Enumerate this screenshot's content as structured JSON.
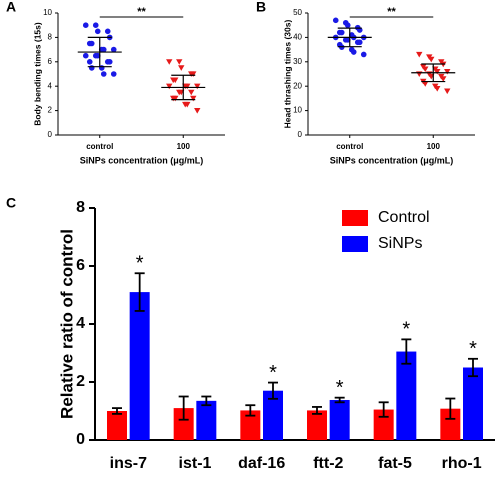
{
  "chart_data": [
    {
      "type": "dot",
      "panel": "A",
      "ylabel": "Body bending times (15s)",
      "xlabel": "SiNPs  concentration (μg/mL)",
      "categories": [
        "control",
        "100"
      ],
      "annotation": "**",
      "ylim": [
        0,
        10
      ],
      "yticks": [
        0,
        2,
        4,
        6,
        8,
        10
      ],
      "groups": [
        {
          "color": "#1a1ae6",
          "marker": "circle",
          "mean": 6.8,
          "sd": 1.2,
          "values": [
            9.0,
            9.0,
            8.5,
            8.5,
            8.0,
            7.5,
            7.5,
            7.0,
            7.0,
            7.0,
            6.5,
            6.5,
            6.5,
            6.0,
            6.0,
            6.0,
            5.5,
            5.5,
            5.0,
            5.0
          ]
        },
        {
          "color": "#e61a1a",
          "marker": "triangle",
          "mean": 3.9,
          "sd": 1.0,
          "values": [
            6.0,
            6.0,
            5.5,
            5.0,
            5.0,
            4.5,
            4.5,
            4.0,
            4.0,
            4.0,
            4.0,
            3.5,
            3.5,
            3.5,
            3.0,
            3.0,
            3.0,
            2.5,
            2.5,
            2.0
          ]
        }
      ]
    },
    {
      "type": "dot",
      "panel": "B",
      "ylabel": "Head thrashing times (30s)",
      "xlabel": "SiNPs  concentration (μg/mL)",
      "categories": [
        "control",
        "100"
      ],
      "annotation": "**",
      "ylim": [
        0,
        50
      ],
      "yticks": [
        0,
        10,
        20,
        30,
        40,
        50
      ],
      "groups": [
        {
          "color": "#1a1ae6",
          "marker": "circle",
          "mean": 40,
          "sd": 3.8,
          "values": [
            47,
            46,
            45,
            44,
            43,
            42,
            42,
            41,
            40,
            40,
            40,
            39,
            39,
            38,
            38,
            37,
            36,
            35,
            34,
            33
          ]
        },
        {
          "color": "#e61a1a",
          "marker": "triangle",
          "mean": 25.5,
          "sd": 3.6,
          "values": [
            33,
            32,
            31,
            30,
            29,
            28,
            27,
            27,
            26,
            26,
            25,
            25,
            24,
            24,
            23,
            22,
            21,
            20,
            19,
            18
          ]
        }
      ]
    },
    {
      "type": "bar",
      "panel": "C",
      "ylabel": "Relative ratio of control",
      "categories": [
        "ins-7",
        "ist-1",
        "daf-16",
        "ftt-2",
        "fat-5",
        "rho-1"
      ],
      "ylim": [
        0,
        8
      ],
      "yticks": [
        0,
        2,
        4,
        6,
        8
      ],
      "series": [
        {
          "name": "Control",
          "color": "#ff0000",
          "values": [
            1.0,
            1.1,
            1.02,
            1.02,
            1.05,
            1.08
          ],
          "errors": [
            0.1,
            0.4,
            0.18,
            0.12,
            0.25,
            0.35
          ]
        },
        {
          "name": "SiNPs",
          "color": "#0000ff",
          "values": [
            5.1,
            1.35,
            1.7,
            1.38,
            3.05,
            2.5
          ],
          "errors": [
            0.65,
            0.15,
            0.28,
            0.08,
            0.42,
            0.3
          ]
        }
      ],
      "significance": [
        "*",
        null,
        "*",
        "*",
        "*",
        "*"
      ]
    }
  ]
}
